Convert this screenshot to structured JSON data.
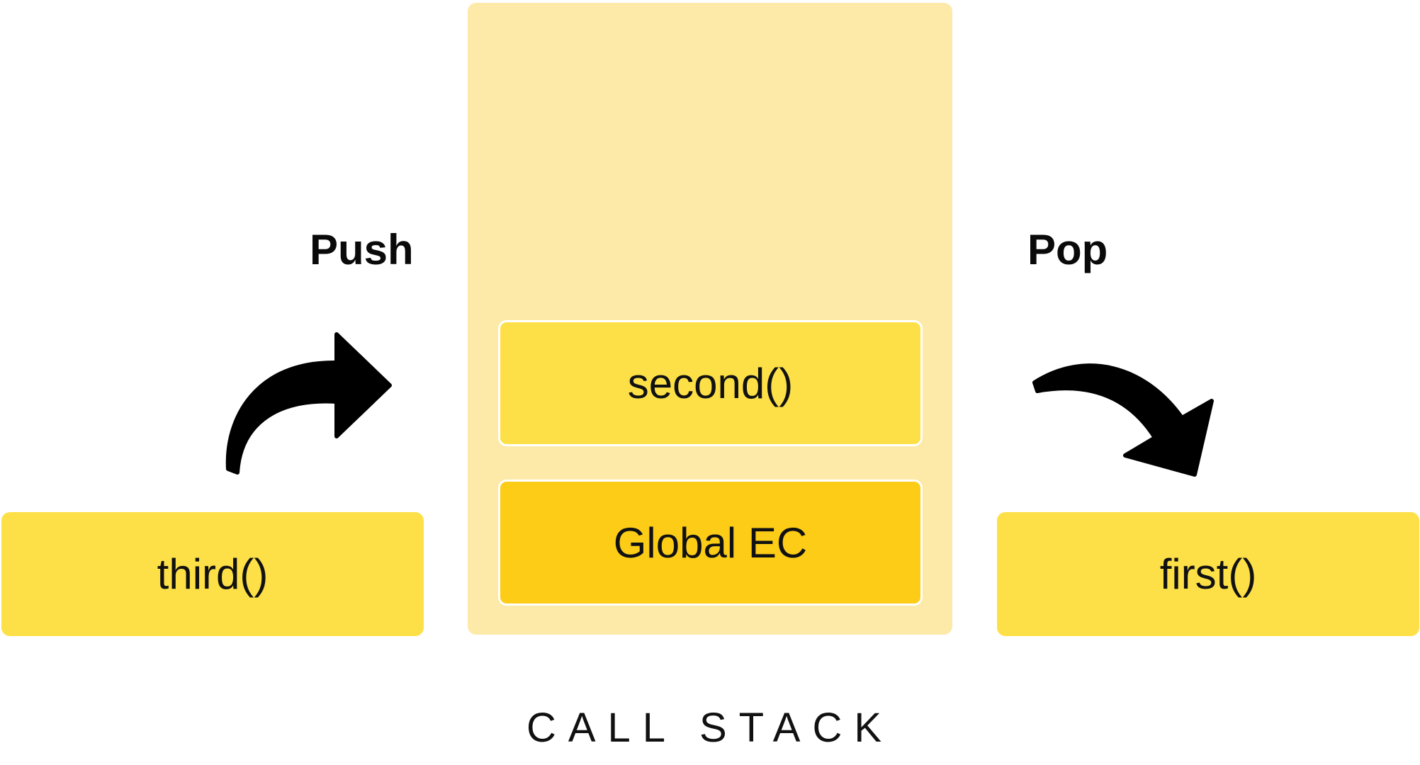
{
  "labels": {
    "push": "Push",
    "pop": "Pop",
    "caption": "CALL STACK"
  },
  "stack": {
    "frames": [
      {
        "label": "second()"
      },
      {
        "label": "Global EC"
      }
    ]
  },
  "incoming": {
    "label": "third()"
  },
  "outgoing": {
    "label": "first()"
  },
  "colors": {
    "stack_background": "#fdeaa9",
    "frame_yellow": "#fde047",
    "global_frame": "#fccc17",
    "arrow": "#000000"
  },
  "icons": {
    "push": "curved-arrow-right-icon",
    "pop": "curved-arrow-down-right-icon"
  }
}
